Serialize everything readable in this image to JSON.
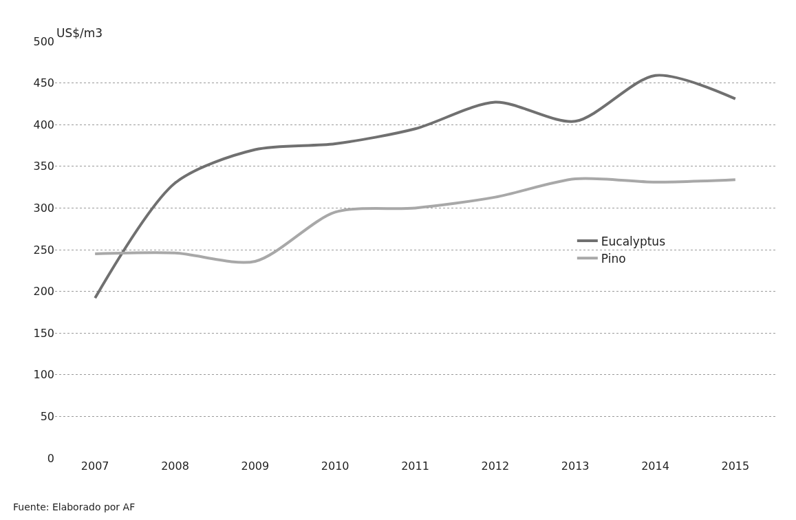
{
  "chart_data": {
    "type": "line",
    "ylabel": "US$/m3",
    "categories": [
      "2007",
      "2008",
      "2009",
      "2010",
      "2011",
      "2012",
      "2013",
      "2014",
      "2015"
    ],
    "series": [
      {
        "name": "Eucalyptus",
        "color": "#707070",
        "values": [
          192,
          330,
          370,
          377,
          395,
          427,
          404,
          459,
          431
        ]
      },
      {
        "name": "Pino",
        "color": "#a8a8a8",
        "values": [
          245,
          246,
          236,
          295,
          300,
          313,
          335,
          331,
          334
        ]
      }
    ],
    "ylim": [
      0,
      500
    ],
    "yticks": [
      0,
      50,
      100,
      150,
      200,
      250,
      300,
      350,
      400,
      450,
      500
    ],
    "grid": "y",
    "legend": "right",
    "line_style": "solid",
    "marker": "none",
    "annotations": [
      "Fuente: Elaborado por AF"
    ]
  }
}
